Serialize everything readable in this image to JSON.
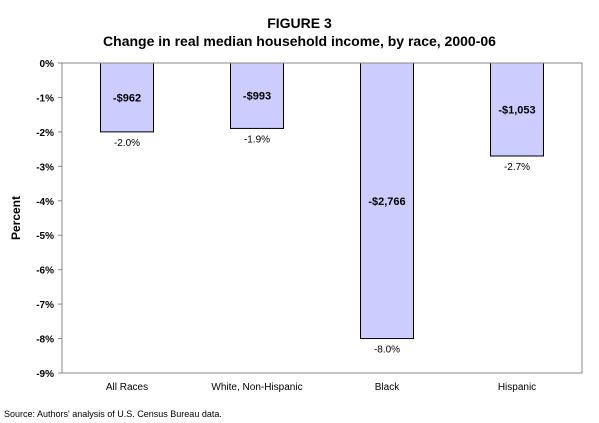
{
  "figure_label": "FIGURE 3",
  "source_note": "Source: Authors' analysis of U.S. Census Bureau data.",
  "chart_data": {
    "type": "bar",
    "title": "Change in real median household income, by race, 2000-06",
    "xlabel": "",
    "ylabel": "Percent",
    "ylim": [
      -9,
      0
    ],
    "ytick_values": [
      0,
      -1,
      -2,
      -3,
      -4,
      -5,
      -6,
      -7,
      -8,
      -9
    ],
    "ytick_labels": [
      "0%",
      "-1%",
      "-2%",
      "-3%",
      "-4%",
      "-5%",
      "-6%",
      "-7%",
      "-8%",
      "-9%"
    ],
    "categories": [
      "All Races",
      "White, Non-Hispanic",
      "Black",
      "Hispanic"
    ],
    "values": [
      -2.0,
      -1.9,
      -8.0,
      -2.7
    ],
    "value_labels": [
      "-2.0%",
      "-1.9%",
      "-8.0%",
      "-2.7%"
    ],
    "dollar_labels": [
      "-$962",
      "-$993",
      "-$2,766",
      "-$1,053"
    ],
    "grid": false,
    "bar_color": "#ccccff",
    "bar_edge_color": "#000000"
  }
}
